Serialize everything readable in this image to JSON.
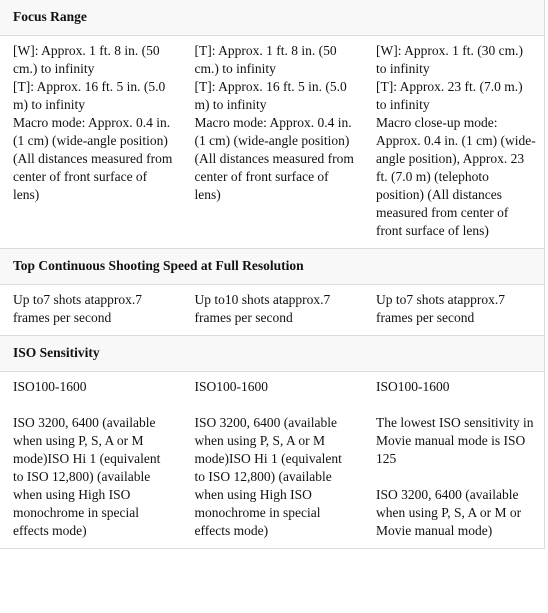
{
  "sections": [
    {
      "title": "Focus Range",
      "cells": [
        [
          [
            "[W]: Approx. 1 ft. 8 in. (50 cm.) to infinity",
            "[T]: Approx. 16 ft. 5 in. (5.0 m) to infinity",
            "Macro mode: Approx. 0.4 in. (1 cm) (wide-angle position) (All distances measured from center of front surface of lens)"
          ]
        ],
        [
          [
            "[T]: Approx. 1 ft. 8 in. (50 cm.) to infinity",
            "[T]: Approx. 16 ft. 5 in. (5.0 m) to infinity",
            "Macro mode: Approx. 0.4 in. (1 cm) (wide-angle position) (All distances measured from center of front surface of lens)"
          ]
        ],
        [
          [
            "[W]: Approx. 1 ft. (30 cm.) to infinity",
            "[T]: Approx. 23 ft. (7.0 m.) to infinity",
            "Macro close-up mode: Approx. 0.4 in. (1 cm) (wide-angle position), Approx. 23 ft. (7.0 m) (telephoto position) (All distances measured from center of front surface of lens)"
          ]
        ]
      ]
    },
    {
      "title": "Top Continuous Shooting Speed at Full Resolution",
      "cells": [
        [
          [
            "Up to7 shots atapprox.7 frames per second"
          ]
        ],
        [
          [
            "Up to10 shots atapprox.7 frames per second"
          ]
        ],
        [
          [
            "Up to7 shots atapprox.7 frames per second"
          ]
        ]
      ]
    },
    {
      "title": "ISO Sensitivity",
      "cells": [
        [
          [
            "ISO100-1600"
          ],
          [
            "ISO 3200, 6400 (available when using P, S, A or M mode)ISO Hi 1 (equivalent to ISO 12,800) (available when using High ISO monochrome in special effects mode)"
          ]
        ],
        [
          [
            "ISO100-1600"
          ],
          [
            "ISO 3200, 6400 (available when using P, S, A or M mode)ISO Hi 1 (equivalent to ISO 12,800) (available when using High ISO monochrome in special effects mode)"
          ]
        ],
        [
          [
            "ISO100-1600"
          ],
          [
            "The lowest ISO sensitivity in Movie manual mode is ISO 125"
          ],
          [
            "ISO 3200, 6400 (available when using P, S, A or M or Movie manual mode)"
          ]
        ]
      ]
    }
  ]
}
